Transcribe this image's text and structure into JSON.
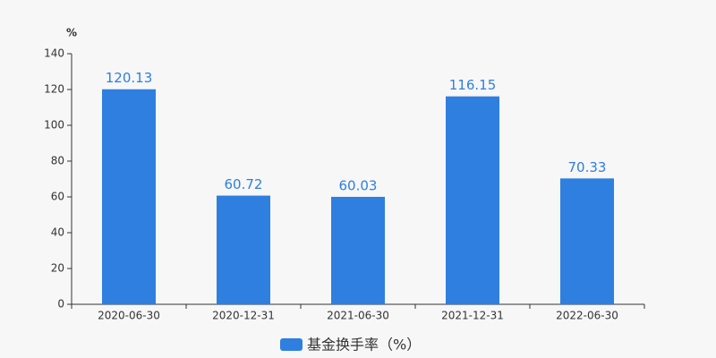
{
  "chart_data": {
    "type": "bar",
    "y_label": "%",
    "categories": [
      "2020-06-30",
      "2020-12-31",
      "2021-06-30",
      "2021-12-31",
      "2022-06-30"
    ],
    "series": [
      {
        "name": "基金换手率（%）",
        "color": "#2e7fe0",
        "values": [
          120.13,
          60.72,
          60.03,
          116.15,
          70.33
        ]
      }
    ],
    "ylim": [
      0,
      140
    ],
    "yticks": [
      0,
      20,
      40,
      60,
      80,
      100,
      120,
      140
    ],
    "grid": false,
    "legend": "bottom"
  }
}
